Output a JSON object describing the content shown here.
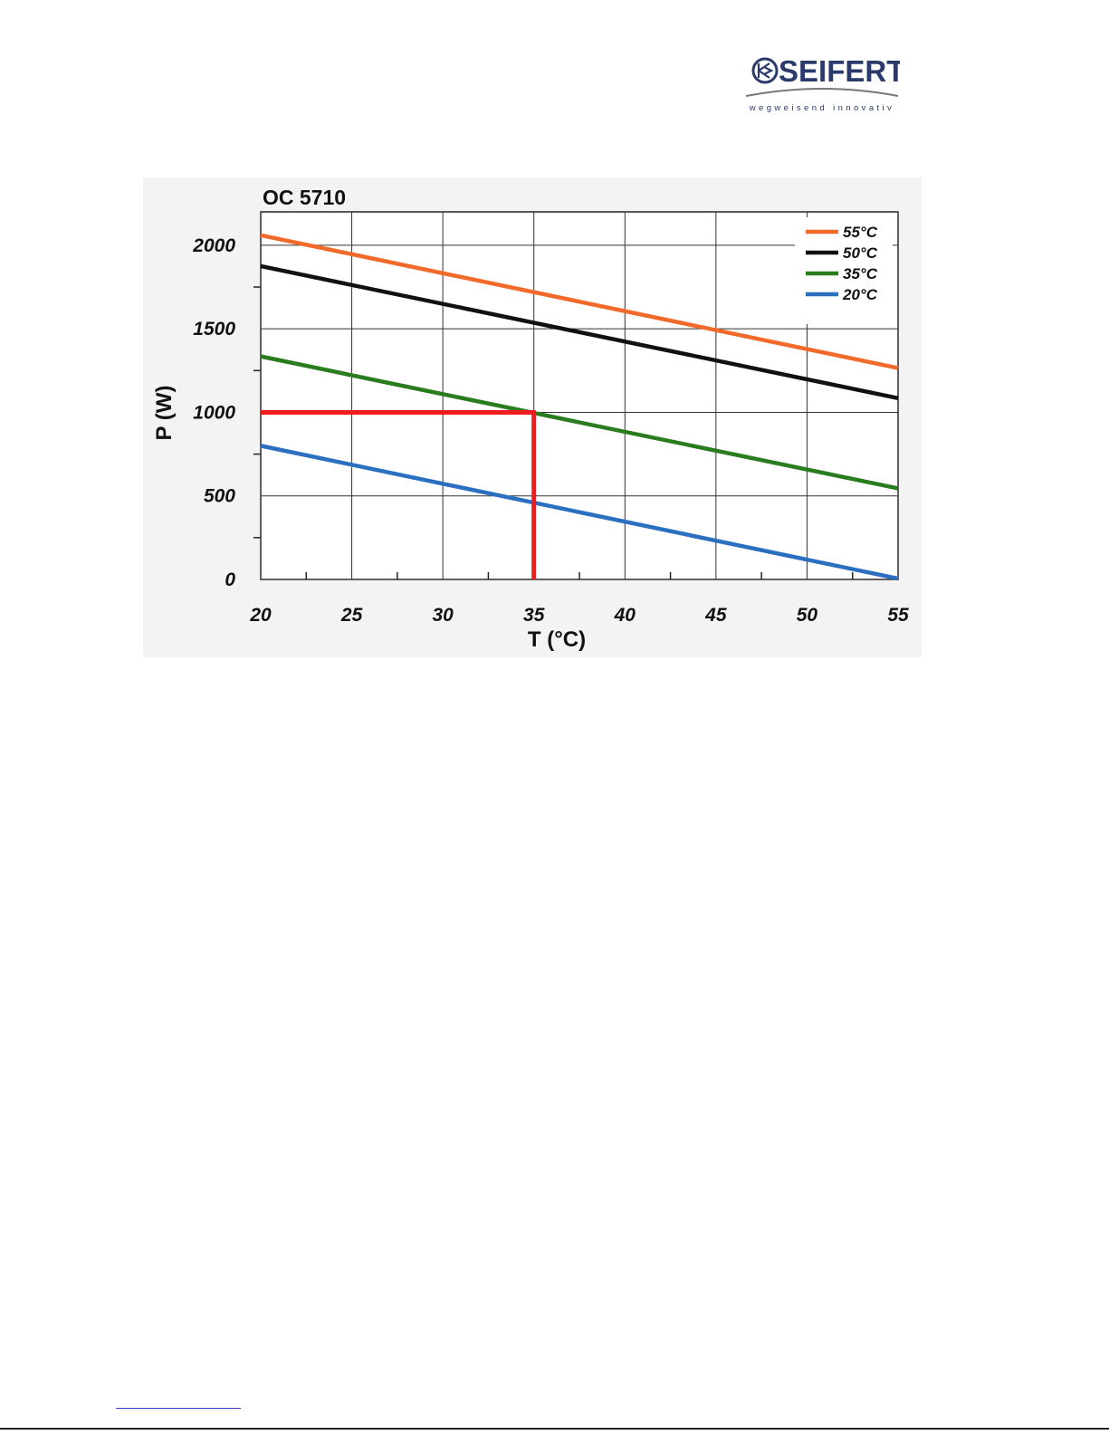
{
  "header": {
    "logo": {
      "brand": "SEIFERT",
      "tagline": "wegweisend innovativ",
      "color": "#2a3a6b"
    }
  },
  "chart_data": {
    "type": "line",
    "title": "OC 5710",
    "xlabel": "T (°C)",
    "ylabel": "P (W)",
    "xlim": [
      20,
      55
    ],
    "ylim": [
      0,
      2000
    ],
    "x_ticks": [
      20,
      25,
      30,
      35,
      40,
      45,
      50,
      55
    ],
    "y_ticks": [
      0,
      500,
      1000,
      1500,
      2000
    ],
    "grid": true,
    "legend_position": "top-right",
    "series": [
      {
        "name": "55°C",
        "color": "#f26a2a",
        "x": [
          20,
          55
        ],
        "y": [
          2060,
          1265
        ]
      },
      {
        "name": "50°C",
        "color": "#111111",
        "x": [
          20,
          55
        ],
        "y": [
          1875,
          1085
        ]
      },
      {
        "name": "35°C",
        "color": "#2a7d1f",
        "x": [
          20,
          55
        ],
        "y": [
          1335,
          545
        ]
      },
      {
        "name": "20°C",
        "color": "#2a6fc0",
        "x": [
          20,
          55
        ],
        "y": [
          800,
          5
        ]
      }
    ],
    "marker_lines": {
      "color": "#ee1c1c",
      "horizontal": {
        "y": 1000,
        "x": [
          20,
          35
        ]
      },
      "vertical": {
        "x": 35,
        "y": [
          0,
          1000
        ]
      }
    }
  }
}
